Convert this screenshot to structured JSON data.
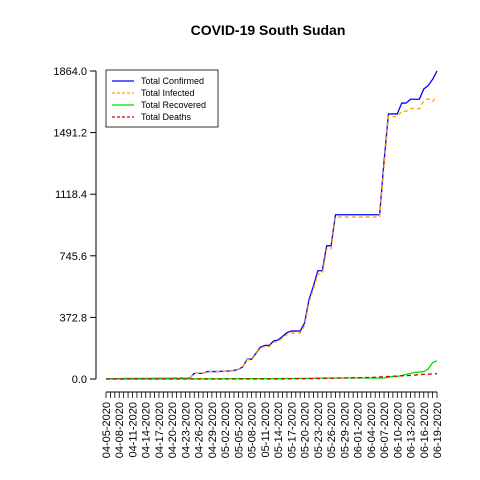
{
  "chart_data": {
    "type": "line",
    "title": "COVID-19 South Sudan",
    "xlabel": "",
    "ylabel": "",
    "yticks": [
      "0.0",
      "372.8",
      "745.6",
      "1118.4",
      "1491.2",
      "1864.0"
    ],
    "ytick_values": [
      0,
      372.8,
      745.6,
      1118.4,
      1491.2,
      1864.0
    ],
    "ylim": [
      0,
      1864.0
    ],
    "x_start": "04-05-2020",
    "x_end": "06-19-2020",
    "xtick_labels": [
      "04-05-2020",
      "04-08-2020",
      "04-11-2020",
      "04-14-2020",
      "04-17-2020",
      "04-20-2020",
      "04-23-2020",
      "04-26-2020",
      "04-29-2020",
      "05-02-2020",
      "05-05-2020",
      "05-08-2020",
      "05-11-2020",
      "05-14-2020",
      "05-17-2020",
      "05-20-2020",
      "05-23-2020",
      "05-26-2020",
      "05-29-2020",
      "06-01-2020",
      "06-04-2020",
      "06-07-2020",
      "06-10-2020",
      "06-13-2020",
      "06-16-2020",
      "06-19-2020"
    ],
    "grid": false,
    "legend_position": "top-left",
    "series": [
      {
        "name": "Total Confirmed",
        "color": "#0000ff",
        "dash": "solid",
        "x": [
          "04-05-2020",
          "04-06-2020",
          "04-07-2020",
          "04-18-2020",
          "04-19-2020",
          "04-22-2020",
          "04-24-2020",
          "04-25-2020",
          "04-26-2020",
          "04-27-2020",
          "04-28-2020",
          "04-30-2020",
          "05-01-2020",
          "05-03-2020",
          "05-04-2020",
          "05-05-2020",
          "05-06-2020",
          "05-07-2020",
          "05-08-2020",
          "05-09-2020",
          "05-10-2020",
          "05-11-2020",
          "05-12-2020",
          "05-13-2020",
          "05-14-2020",
          "05-15-2020",
          "05-16-2020",
          "05-17-2020",
          "05-19-2020",
          "05-20-2020",
          "05-21-2020",
          "05-22-2020",
          "05-23-2020",
          "05-24-2020",
          "05-25-2020",
          "05-26-2020",
          "05-27-2020",
          "05-29-2020",
          "06-06-2020",
          "06-07-2020",
          "06-08-2020",
          "06-09-2020",
          "06-10-2020",
          "06-11-2020",
          "06-12-2020",
          "06-13-2020",
          "06-14-2020",
          "06-15-2020",
          "06-16-2020",
          "06-17-2020",
          "06-18-2020",
          "06-19-2020"
        ],
        "values": [
          1,
          1,
          2,
          4,
          4,
          5,
          6,
          34,
          34,
          35,
          45,
          45,
          46,
          49,
          52,
          58,
          74,
          120,
          120,
          156,
          194,
          203,
          203,
          231,
          236,
          258,
          281,
          290,
          290,
          339,
          481,
          563,
          655,
          655,
          806,
          806,
          994,
          994,
          994,
          1317,
          1604,
          1604,
          1604,
          1670,
          1670,
          1693,
          1693,
          1693,
          1755,
          1776,
          1813,
          1864
        ]
      },
      {
        "name": "Total Infected",
        "color": "#ffa500",
        "dash": "dashed",
        "x": [
          "04-05-2020",
          "04-06-2020",
          "04-07-2020",
          "04-18-2020",
          "04-19-2020",
          "04-22-2020",
          "04-24-2020",
          "04-25-2020",
          "04-26-2020",
          "04-27-2020",
          "04-28-2020",
          "04-30-2020",
          "05-01-2020",
          "05-03-2020",
          "05-04-2020",
          "05-05-2020",
          "05-06-2020",
          "05-07-2020",
          "05-08-2020",
          "05-09-2020",
          "05-10-2020",
          "05-11-2020",
          "05-12-2020",
          "05-13-2020",
          "05-14-2020",
          "05-15-2020",
          "05-16-2020",
          "05-17-2020",
          "05-19-2020",
          "05-20-2020",
          "05-21-2020",
          "05-22-2020",
          "05-23-2020",
          "05-24-2020",
          "05-25-2020",
          "05-26-2020",
          "05-27-2020",
          "05-29-2020",
          "06-06-2020",
          "06-07-2020",
          "06-08-2020",
          "06-09-2020",
          "06-10-2020",
          "06-11-2020",
          "06-12-2020",
          "06-13-2020",
          "06-14-2020",
          "06-15-2020",
          "06-16-2020",
          "06-17-2020",
          "06-18-2020",
          "06-19-2020"
        ],
        "values": [
          1,
          1,
          2,
          4,
          4,
          5,
          6,
          34,
          34,
          35,
          45,
          45,
          46,
          48,
          51,
          57,
          72,
          117,
          117,
          152,
          188,
          196,
          196,
          223,
          227,
          248,
          270,
          278,
          277,
          324,
          464,
          545,
          636,
          636,
          786,
          786,
          980,
          980,
          980,
          1285,
          1590,
          1588,
          1588,
          1620,
          1620,
          1635,
          1640,
          1635,
          1685,
          1695,
          1680,
          1714
        ]
      },
      {
        "name": "Total Recovered",
        "color": "#00e000",
        "dash": "solid",
        "x": [
          "04-05-2020",
          "05-10-2020",
          "05-20-2020",
          "05-25-2020",
          "06-01-2020",
          "06-07-2020",
          "06-09-2020",
          "06-10-2020",
          "06-14-2020",
          "06-15-2020",
          "06-16-2020",
          "06-17-2020",
          "06-18-2020",
          "06-19-2020"
        ],
        "values": [
          0,
          2,
          4,
          6,
          6,
          6,
          15,
          15,
          40,
          42,
          45,
          60,
          100,
          110
        ]
      },
      {
        "name": "Total Deaths",
        "color": "#cc0000",
        "dash": "dashed",
        "x": [
          "04-05-2020",
          "05-13-2020",
          "05-20-2020",
          "05-25-2020",
          "06-01-2020",
          "06-05-2020",
          "06-07-2020",
          "06-10-2020",
          "06-13-2020",
          "06-16-2020",
          "06-19-2020"
        ],
        "values": [
          0,
          0,
          2,
          4,
          8,
          10,
          14,
          18,
          22,
          28,
          32
        ]
      }
    ]
  }
}
